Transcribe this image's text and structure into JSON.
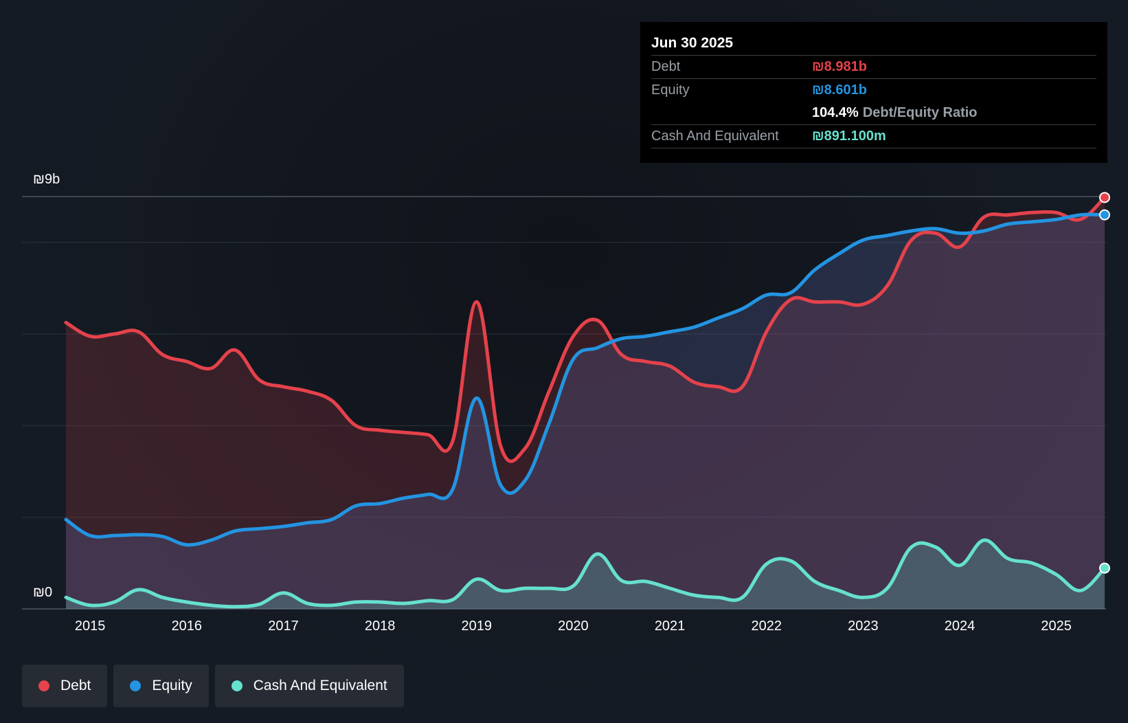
{
  "colors": {
    "debt": "#e5424b",
    "equity": "#2394e1",
    "cash": "#66e0cf",
    "grid": "#2c323c",
    "axis": "#505661"
  },
  "y_axis": {
    "top_label": "₪9b",
    "bottom_label": "₪0"
  },
  "tooltip": {
    "date": "Jun 30 2025",
    "debt_label": "Debt",
    "debt_value": "₪8.981b",
    "equity_label": "Equity",
    "equity_value": "₪8.601b",
    "ratio_value": "104.4%",
    "ratio_label": "Debt/Equity Ratio",
    "cash_label": "Cash And Equivalent",
    "cash_value": "₪891.100m"
  },
  "legend": {
    "debt": "Debt",
    "equity": "Equity",
    "cash": "Cash And Equivalent"
  },
  "chart_data": {
    "type": "area",
    "title": "",
    "xlabel": "",
    "ylabel": "",
    "ylim": [
      0,
      9
    ],
    "xlim": [
      2014.75,
      2025.5
    ],
    "y_unit": "₪ billions",
    "grid": true,
    "legend_position": "bottom-left",
    "x_ticks": [
      "2015",
      "2016",
      "2017",
      "2018",
      "2019",
      "2020",
      "2021",
      "2022",
      "2023",
      "2024",
      "2025"
    ],
    "series": [
      {
        "name": "Debt",
        "points": [
          [
            2014.75,
            6.25
          ],
          [
            2015.0,
            5.95
          ],
          [
            2015.25,
            6.0
          ],
          [
            2015.5,
            6.05
          ],
          [
            2015.75,
            5.55
          ],
          [
            2016.0,
            5.4
          ],
          [
            2016.25,
            5.25
          ],
          [
            2016.5,
            5.65
          ],
          [
            2016.75,
            5.0
          ],
          [
            2017.0,
            4.85
          ],
          [
            2017.25,
            4.75
          ],
          [
            2017.5,
            4.55
          ],
          [
            2017.75,
            4.0
          ],
          [
            2018.0,
            3.9
          ],
          [
            2018.25,
            3.85
          ],
          [
            2018.5,
            3.8
          ],
          [
            2018.75,
            3.65
          ],
          [
            2019.0,
            6.7
          ],
          [
            2019.25,
            3.55
          ],
          [
            2019.5,
            3.5
          ],
          [
            2019.75,
            4.75
          ],
          [
            2020.0,
            5.95
          ],
          [
            2020.25,
            6.3
          ],
          [
            2020.5,
            5.55
          ],
          [
            2020.75,
            5.4
          ],
          [
            2021.0,
            5.3
          ],
          [
            2021.25,
            4.95
          ],
          [
            2021.5,
            4.85
          ],
          [
            2021.75,
            4.85
          ],
          [
            2022.0,
            6.05
          ],
          [
            2022.25,
            6.75
          ],
          [
            2022.5,
            6.7
          ],
          [
            2022.75,
            6.7
          ],
          [
            2023.0,
            6.65
          ],
          [
            2023.25,
            7.05
          ],
          [
            2023.5,
            8.05
          ],
          [
            2023.75,
            8.2
          ],
          [
            2024.0,
            7.9
          ],
          [
            2024.25,
            8.55
          ],
          [
            2024.5,
            8.6
          ],
          [
            2024.75,
            8.65
          ],
          [
            2025.0,
            8.65
          ],
          [
            2025.25,
            8.5
          ],
          [
            2025.5,
            8.98
          ]
        ]
      },
      {
        "name": "Equity",
        "points": [
          [
            2014.75,
            1.95
          ],
          [
            2015.0,
            1.6
          ],
          [
            2015.25,
            1.6
          ],
          [
            2015.5,
            1.62
          ],
          [
            2015.75,
            1.58
          ],
          [
            2016.0,
            1.4
          ],
          [
            2016.25,
            1.5
          ],
          [
            2016.5,
            1.7
          ],
          [
            2016.75,
            1.75
          ],
          [
            2017.0,
            1.8
          ],
          [
            2017.25,
            1.88
          ],
          [
            2017.5,
            1.95
          ],
          [
            2017.75,
            2.25
          ],
          [
            2018.0,
            2.3
          ],
          [
            2018.25,
            2.42
          ],
          [
            2018.5,
            2.5
          ],
          [
            2018.75,
            2.6
          ],
          [
            2019.0,
            4.6
          ],
          [
            2019.25,
            2.7
          ],
          [
            2019.5,
            2.8
          ],
          [
            2019.75,
            4.05
          ],
          [
            2020.0,
            5.45
          ],
          [
            2020.25,
            5.7
          ],
          [
            2020.5,
            5.9
          ],
          [
            2020.75,
            5.95
          ],
          [
            2021.0,
            6.05
          ],
          [
            2021.25,
            6.15
          ],
          [
            2021.5,
            6.35
          ],
          [
            2021.75,
            6.55
          ],
          [
            2022.0,
            6.85
          ],
          [
            2022.25,
            6.9
          ],
          [
            2022.5,
            7.4
          ],
          [
            2022.75,
            7.75
          ],
          [
            2023.0,
            8.05
          ],
          [
            2023.25,
            8.15
          ],
          [
            2023.5,
            8.25
          ],
          [
            2023.75,
            8.3
          ],
          [
            2024.0,
            8.2
          ],
          [
            2024.25,
            8.25
          ],
          [
            2024.5,
            8.4
          ],
          [
            2024.75,
            8.45
          ],
          [
            2025.0,
            8.5
          ],
          [
            2025.25,
            8.6
          ],
          [
            2025.5,
            8.601
          ]
        ]
      },
      {
        "name": "Cash And Equivalent",
        "points": [
          [
            2014.75,
            0.25
          ],
          [
            2015.0,
            0.08
          ],
          [
            2015.25,
            0.15
          ],
          [
            2015.5,
            0.42
          ],
          [
            2015.75,
            0.25
          ],
          [
            2016.0,
            0.15
          ],
          [
            2016.25,
            0.08
          ],
          [
            2016.5,
            0.05
          ],
          [
            2016.75,
            0.1
          ],
          [
            2017.0,
            0.35
          ],
          [
            2017.25,
            0.12
          ],
          [
            2017.5,
            0.08
          ],
          [
            2017.75,
            0.15
          ],
          [
            2018.0,
            0.15
          ],
          [
            2018.25,
            0.12
          ],
          [
            2018.5,
            0.18
          ],
          [
            2018.75,
            0.2
          ],
          [
            2019.0,
            0.65
          ],
          [
            2019.25,
            0.4
          ],
          [
            2019.5,
            0.45
          ],
          [
            2019.75,
            0.45
          ],
          [
            2020.0,
            0.5
          ],
          [
            2020.25,
            1.2
          ],
          [
            2020.5,
            0.62
          ],
          [
            2020.75,
            0.6
          ],
          [
            2021.0,
            0.45
          ],
          [
            2021.25,
            0.3
          ],
          [
            2021.5,
            0.25
          ],
          [
            2021.75,
            0.25
          ],
          [
            2022.0,
            0.98
          ],
          [
            2022.25,
            1.05
          ],
          [
            2022.5,
            0.6
          ],
          [
            2022.75,
            0.4
          ],
          [
            2023.0,
            0.25
          ],
          [
            2023.25,
            0.45
          ],
          [
            2023.5,
            1.35
          ],
          [
            2023.75,
            1.35
          ],
          [
            2024.0,
            0.95
          ],
          [
            2024.25,
            1.5
          ],
          [
            2024.5,
            1.1
          ],
          [
            2024.75,
            1.0
          ],
          [
            2025.0,
            0.75
          ],
          [
            2025.25,
            0.4
          ],
          [
            2025.5,
            0.891
          ]
        ]
      }
    ]
  }
}
